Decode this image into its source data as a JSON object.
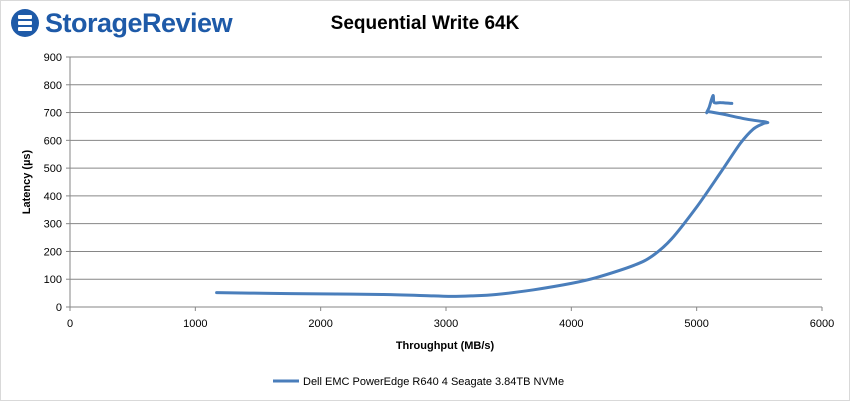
{
  "branding": {
    "logo_text": "StorageReview",
    "logo_color": "#1e5aa8"
  },
  "chart_data": {
    "type": "line",
    "title": "Sequential Write 64K",
    "xlabel": "Throughput (MB/s)",
    "ylabel": "Latency (µs)",
    "xlim": [
      0,
      6000
    ],
    "ylim": [
      0,
      900
    ],
    "xticks": [
      0,
      1000,
      2000,
      3000,
      4000,
      5000,
      6000
    ],
    "yticks": [
      0,
      100,
      200,
      300,
      400,
      500,
      600,
      700,
      800,
      900
    ],
    "grid": "horizontal",
    "legend_position": "bottom",
    "series": [
      {
        "name": "Dell EMC PowerEdge R640 4 Seagate 3.84TB NVMe",
        "color": "#4a7ebb",
        "x": [
          1170,
          1600,
          2000,
          2500,
          2900,
          3050,
          3200,
          3400,
          3700,
          4000,
          4200,
          4500,
          4650,
          4800,
          5000,
          5200,
          5350,
          5450,
          5530,
          5560,
          5400,
          5200,
          5100,
          5080,
          5100,
          5130,
          5140,
          5190,
          5280
        ],
        "y": [
          52,
          49,
          47,
          45,
          40,
          38,
          40,
          45,
          62,
          85,
          106,
          150,
          185,
          245,
          360,
          490,
          590,
          640,
          660,
          665,
          676,
          695,
          703,
          700,
          719,
          761,
          736,
          736,
          733
        ]
      }
    ]
  }
}
